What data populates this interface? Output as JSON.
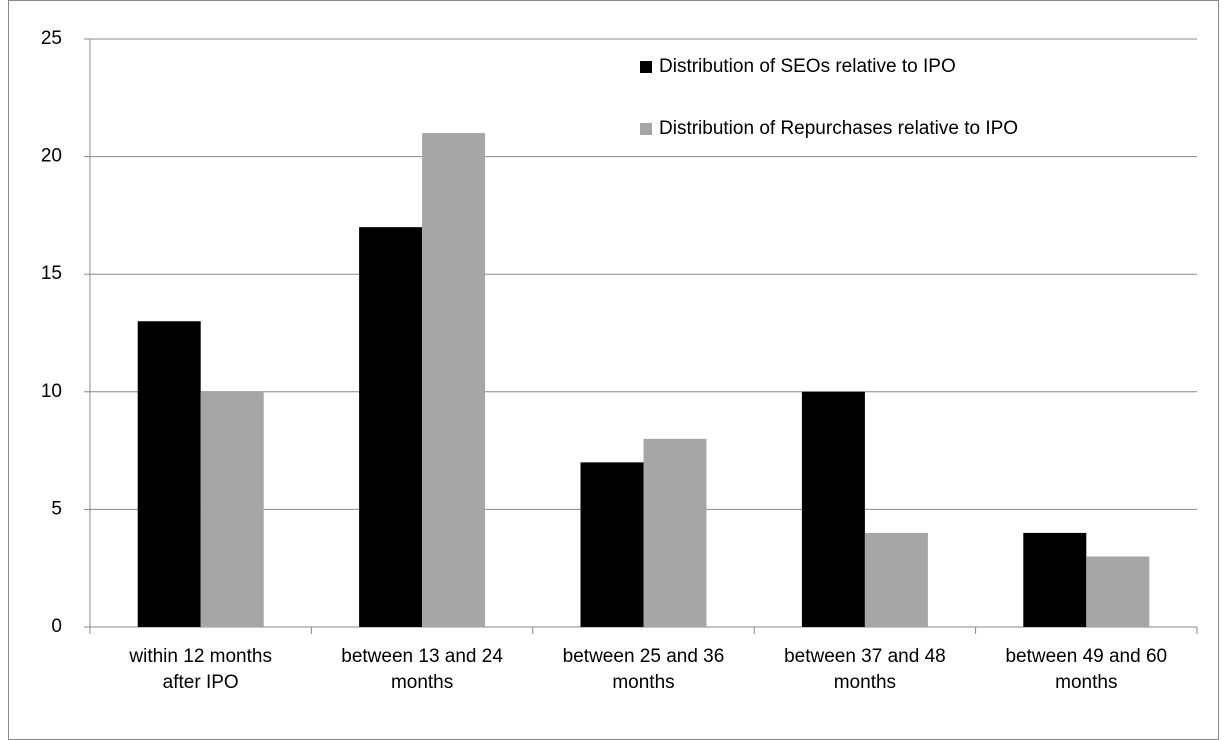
{
  "chart_data": {
    "type": "bar",
    "categories": [
      "within 12 months after IPO",
      "between 13 and 24 months",
      "between 25 and 36 months",
      "between 37 and 48 months",
      "between 49 and 60 months"
    ],
    "series": [
      {
        "name": "Distribution of SEOs relative to IPO",
        "color": "#000000",
        "values": [
          13,
          17,
          7,
          10,
          4
        ]
      },
      {
        "name": "Distribution of Repurchases relative to IPO",
        "color": "#a6a6a6",
        "values": [
          10,
          21,
          8,
          4,
          3
        ]
      }
    ],
    "ylim": [
      0,
      25
    ],
    "yticks": [
      0,
      5,
      10,
      15,
      20,
      25
    ],
    "grid": true,
    "legend": "top-right"
  }
}
